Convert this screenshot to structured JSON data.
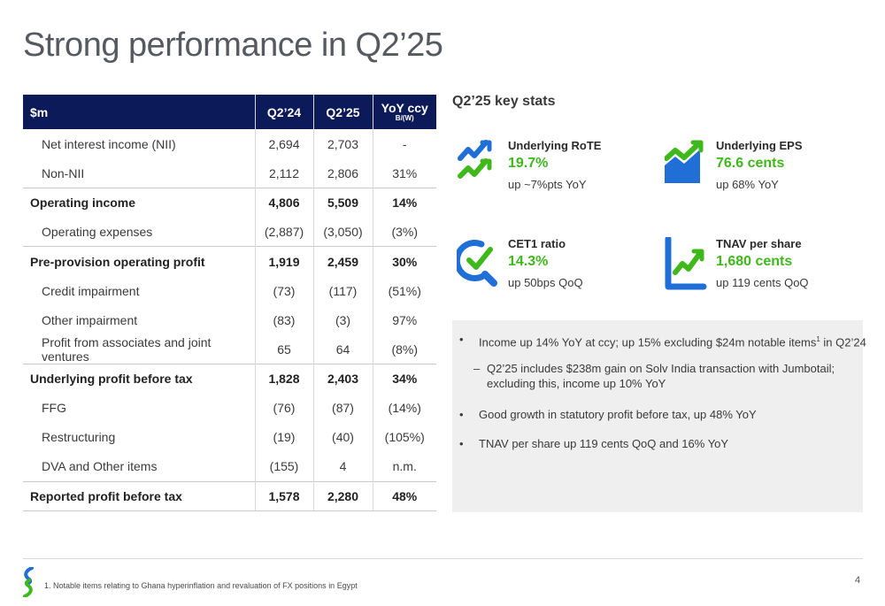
{
  "title": "Strong performance in Q2’25",
  "table": {
    "headers": {
      "label": "$m",
      "q1": "Q2’24",
      "q2": "Q2’25",
      "yoy_main": "YoY ccy",
      "yoy_sub": "B/(W)"
    },
    "rows": [
      {
        "label": "Net interest income (NII)",
        "q1": "2,694",
        "q2": "2,703",
        "yoy": "-"
      },
      {
        "label": "Non-NII",
        "q1": "2,112",
        "q2": "2,806",
        "yoy": "31%"
      },
      {
        "label": "Operating income",
        "q1": "4,806",
        "q2": "5,509",
        "yoy": "14%"
      },
      {
        "label": "Operating expenses",
        "q1": "(2,887)",
        "q2": "(3,050)",
        "yoy": "(3%)"
      },
      {
        "label": "Pre-provision operating profit",
        "q1": "1,919",
        "q2": "2,459",
        "yoy": "30%"
      },
      {
        "label": "Credit impairment",
        "q1": "(73)",
        "q2": "(117)",
        "yoy": "(51%)"
      },
      {
        "label": "Other impairment",
        "q1": "(83)",
        "q2": "(3)",
        "yoy": "97%"
      },
      {
        "label": "Profit from associates and joint ventures",
        "q1": "65",
        "q2": "64",
        "yoy": "(8%)"
      },
      {
        "label": "Underlying profit before tax",
        "q1": "1,828",
        "q2": "2,403",
        "yoy": "34%"
      },
      {
        "label": "FFG",
        "q1": "(76)",
        "q2": "(87)",
        "yoy": "(14%)"
      },
      {
        "label": "Restructuring",
        "q1": "(19)",
        "q2": "(40)",
        "yoy": "(105%)"
      },
      {
        "label": "DVA and Other items",
        "q1": "(155)",
        "q2": "4",
        "yoy": "n.m."
      },
      {
        "label": "Reported profit before tax",
        "q1": "1,578",
        "q2": "2,280",
        "yoy": "48%"
      }
    ]
  },
  "key_stats": {
    "heading": "Q2’25 key stats",
    "items": [
      {
        "title": "Underlying RoTE",
        "value": "19.7%",
        "sub": "up ~7%pts YoY",
        "icon": "trend-check-icon"
      },
      {
        "title": "Underlying EPS",
        "value": "76.6 cents",
        "sub": "up 68% YoY",
        "icon": "chart-arrow-icon"
      },
      {
        "title": "CET1 ratio",
        "value": "14.3%",
        "sub": "up 50bps QoQ",
        "icon": "magnifier-check-icon"
      },
      {
        "title": "TNAV per share",
        "value": "1,680 cents",
        "sub": "up 119 cents QoQ",
        "icon": "line-chart-icon"
      }
    ],
    "colors": {
      "blue": "#1f6fd6",
      "green": "#3fb81c",
      "navy": "#0c1a59"
    }
  },
  "notes": {
    "n1_text": "Income up 14% YoY at ccy; up 15% excluding $24m notable items",
    "n1_sup": "1",
    "n1_tail": " in Q2’24",
    "n1_sub_line1": "Q2’25 includes $238m gain on Solv India transaction with Jumbotail;",
    "n1_sub_line2": "excluding this, income up 10% YoY",
    "n2": "Good growth in statutory profit before tax, up 48% YoY",
    "n3": "TNAV per share up 119 cents QoQ and 16% YoY"
  },
  "footer": {
    "footnote": "1. Notable items relating to Ghana hyperinflation and revaluation of FX positions in Egypt",
    "page": "4"
  }
}
